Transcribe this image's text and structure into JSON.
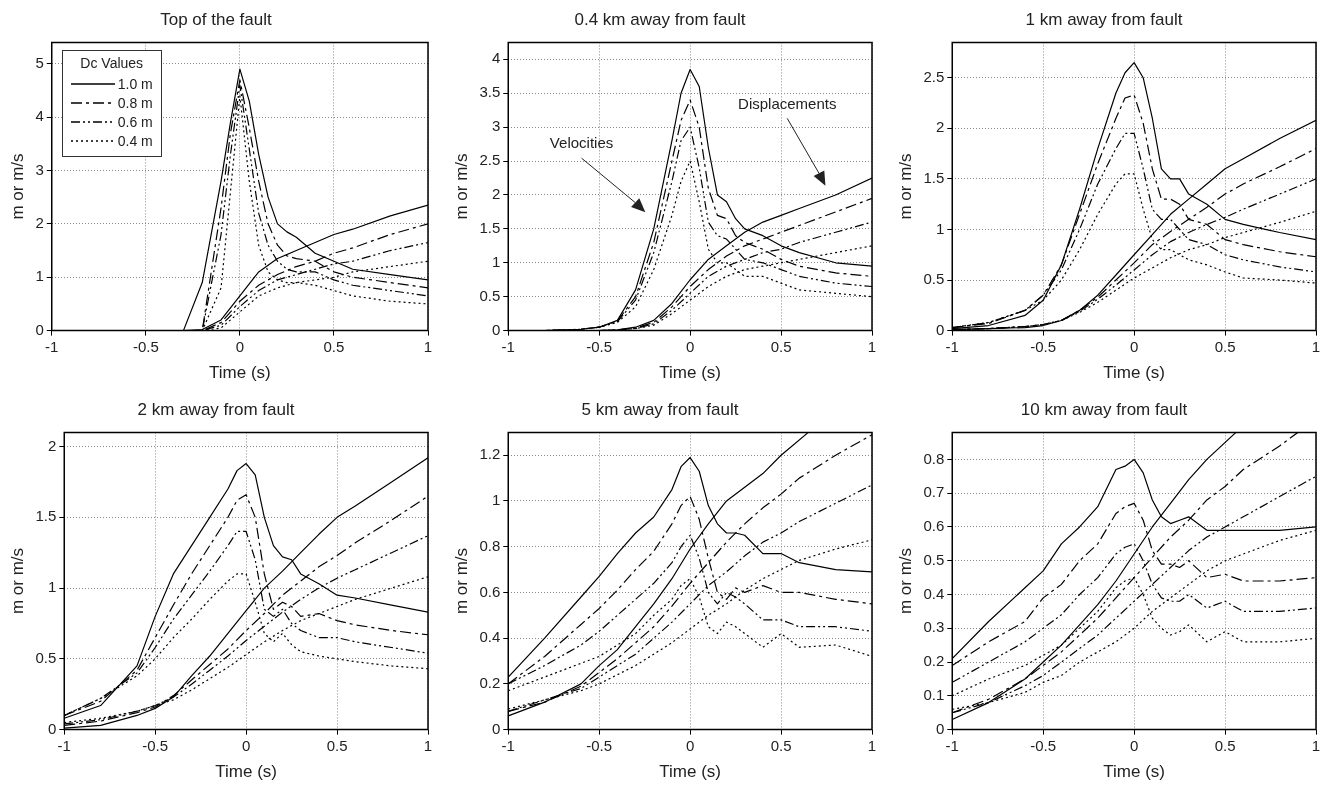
{
  "chart_data": [
    {
      "type": "line",
      "title": "Top of the fault",
      "xlabel": "Time (s)",
      "ylabel": "m or m/s",
      "xlim": [
        -1,
        1
      ],
      "xticks": [
        -1,
        -0.5,
        0,
        0.5,
        1
      ],
      "ylim": [
        0,
        5.4
      ],
      "yticks": [
        0,
        1,
        2,
        3,
        4,
        5
      ],
      "grid": true,
      "legend": "top left",
      "legend_title": "Dc Values",
      "x": [
        -1,
        -0.8,
        -0.6,
        -0.5,
        -0.4,
        -0.3,
        -0.2,
        -0.1,
        -0.05,
        0,
        0.05,
        0.1,
        0.15,
        0.2,
        0.25,
        0.3,
        0.4,
        0.5,
        0.6,
        0.8,
        1
      ],
      "series": [
        {
          "name": "1.0 m",
          "color": "#000000",
          "line_style": "solid",
          "values": [
            0,
            0,
            0,
            0,
            0,
            0,
            0.9,
            2.8,
            3.9,
            4.9,
            4.3,
            3.3,
            2.5,
            2.0,
            1.85,
            1.75,
            1.45,
            1.3,
            1.15,
            1.05,
            0.95
          ]
        },
        {
          "name": "0.8 m",
          "color": "#000000",
          "line_style": "dashed",
          "values": [
            0,
            0,
            0,
            0,
            0,
            0,
            0,
            2.3,
            3.7,
            4.7,
            3.8,
            2.8,
            2.0,
            1.6,
            1.4,
            1.35,
            1.3,
            1.1,
            1.0,
            0.9,
            0.8
          ]
        },
        {
          "name": "0.6 m",
          "color": "#000000",
          "line_style": "dashdot",
          "values": [
            0,
            0,
            0,
            0,
            0,
            0,
            0,
            1.8,
            3.3,
            4.6,
            3.4,
            2.2,
            1.6,
            1.3,
            1.15,
            1.1,
            1.1,
            0.95,
            0.85,
            0.75,
            0.65
          ]
        },
        {
          "name": "0.4 m",
          "color": "#000000",
          "line_style": "dotted",
          "values": [
            0,
            0,
            0,
            0,
            0,
            0,
            0,
            0.8,
            2.6,
            4.4,
            2.8,
            1.6,
            1.1,
            0.95,
            0.9,
            0.9,
            0.85,
            0.75,
            0.65,
            0.55,
            0.5
          ]
        },
        {
          "color": "#000000",
          "line_style": "solid",
          "x": [
            -1,
            -0.8,
            -0.6,
            -0.5,
            -0.4,
            -0.3,
            -0.2,
            -0.1,
            0,
            0.1,
            0.2,
            0.3,
            0.4,
            0.5,
            0.6,
            0.8,
            1
          ],
          "values": [
            0,
            0,
            0,
            0,
            0,
            0,
            0.02,
            0.2,
            0.65,
            1.1,
            1.35,
            1.5,
            1.65,
            1.8,
            1.9,
            2.15,
            2.35
          ]
        },
        {
          "color": "#000000",
          "line_style": "dashed",
          "x": [
            -1,
            -0.8,
            -0.6,
            -0.5,
            -0.4,
            -0.3,
            -0.2,
            -0.1,
            0,
            0.1,
            0.2,
            0.3,
            0.4,
            0.5,
            0.6,
            0.8,
            1
          ],
          "values": [
            0,
            0,
            0,
            0,
            0,
            0,
            0,
            0.15,
            0.55,
            0.85,
            1.05,
            1.2,
            1.3,
            1.45,
            1.55,
            1.8,
            2.0
          ]
        },
        {
          "color": "#000000",
          "line_style": "dashdot",
          "x": [
            -1,
            -0.8,
            -0.6,
            -0.5,
            -0.4,
            -0.3,
            -0.2,
            -0.1,
            0,
            0.1,
            0.2,
            0.3,
            0.4,
            0.5,
            0.6,
            0.8,
            1
          ],
          "values": [
            0,
            0,
            0,
            0,
            0,
            0,
            0,
            0.1,
            0.45,
            0.75,
            0.95,
            1.05,
            1.15,
            1.25,
            1.3,
            1.5,
            1.65
          ]
        },
        {
          "color": "#000000",
          "line_style": "dotted",
          "x": [
            -1,
            -0.8,
            -0.6,
            -0.5,
            -0.4,
            -0.3,
            -0.2,
            -0.1,
            0,
            0.1,
            0.2,
            0.3,
            0.4,
            0.5,
            0.6,
            0.8,
            1
          ],
          "values": [
            0,
            0,
            0,
            0,
            0,
            0,
            0,
            0.05,
            0.35,
            0.65,
            0.8,
            0.9,
            0.95,
            1.0,
            1.1,
            1.2,
            1.3
          ]
        }
      ]
    },
    {
      "type": "line",
      "title": "0.4 km away from fault",
      "xlabel": "Time (s)",
      "ylabel": "m or m/s",
      "xlim": [
        -1,
        1
      ],
      "xticks": [
        -1,
        -0.5,
        0,
        0.5,
        1
      ],
      "ylim": [
        0,
        4.25
      ],
      "yticks": [
        0,
        0.5,
        1,
        1.5,
        2,
        2.5,
        3,
        3.5,
        4
      ],
      "grid": true,
      "annotations": [
        "Velocities",
        "Displacements"
      ],
      "x": [
        -1,
        -0.8,
        -0.6,
        -0.5,
        -0.4,
        -0.3,
        -0.2,
        -0.1,
        -0.05,
        0,
        0.05,
        0.1,
        0.15,
        0.2,
        0.25,
        0.3,
        0.4,
        0.5,
        0.6,
        0.8,
        1
      ],
      "series": [
        {
          "color": "#000000",
          "line_style": "solid",
          "values": [
            0,
            0,
            0.02,
            0.05,
            0.15,
            0.6,
            1.5,
            2.8,
            3.5,
            3.85,
            3.6,
            2.7,
            2.0,
            1.9,
            1.65,
            1.5,
            1.4,
            1.25,
            1.15,
            1.0,
            0.95
          ]
        },
        {
          "color": "#000000",
          "line_style": "dashed",
          "values": [
            0,
            0,
            0.02,
            0.05,
            0.14,
            0.5,
            1.3,
            2.5,
            3.1,
            3.4,
            3.0,
            2.1,
            1.7,
            1.65,
            1.4,
            1.3,
            1.2,
            1.05,
            0.95,
            0.85,
            0.8
          ]
        },
        {
          "color": "#000000",
          "line_style": "dashdot",
          "values": [
            0,
            0,
            0.02,
            0.05,
            0.13,
            0.45,
            1.15,
            2.2,
            2.8,
            3.0,
            2.4,
            1.6,
            1.4,
            1.35,
            1.2,
            1.05,
            1.0,
            0.9,
            0.8,
            0.7,
            0.65
          ]
        },
        {
          "color": "#000000",
          "line_style": "dotted",
          "values": [
            0,
            0,
            0.02,
            0.05,
            0.12,
            0.35,
            0.9,
            1.7,
            2.2,
            2.5,
            1.9,
            1.2,
            1.0,
            1.0,
            0.9,
            0.8,
            0.8,
            0.7,
            0.6,
            0.55,
            0.5
          ]
        },
        {
          "color": "#000000",
          "line_style": "solid",
          "x": [
            -1,
            -0.8,
            -0.6,
            -0.5,
            -0.4,
            -0.3,
            -0.2,
            -0.1,
            0,
            0.1,
            0.2,
            0.3,
            0.4,
            0.5,
            0.6,
            0.8,
            1
          ],
          "values": [
            0,
            0,
            0,
            0,
            0.01,
            0.05,
            0.15,
            0.4,
            0.75,
            1.05,
            1.25,
            1.45,
            1.6,
            1.7,
            1.8,
            2.0,
            2.25
          ]
        },
        {
          "color": "#000000",
          "line_style": "dashed",
          "x": [
            -1,
            -0.8,
            -0.6,
            -0.5,
            -0.4,
            -0.3,
            -0.2,
            -0.1,
            0,
            0.1,
            0.2,
            0.3,
            0.4,
            0.5,
            0.6,
            0.8,
            1
          ],
          "values": [
            0,
            0,
            0,
            0,
            0.01,
            0.04,
            0.12,
            0.35,
            0.65,
            0.9,
            1.1,
            1.25,
            1.35,
            1.45,
            1.55,
            1.75,
            1.95
          ]
        },
        {
          "color": "#000000",
          "line_style": "dashdot",
          "x": [
            -1,
            -0.8,
            -0.6,
            -0.5,
            -0.4,
            -0.3,
            -0.2,
            -0.1,
            0,
            0.1,
            0.2,
            0.3,
            0.4,
            0.5,
            0.6,
            0.8,
            1
          ],
          "values": [
            0,
            0,
            0,
            0,
            0.01,
            0.03,
            0.1,
            0.3,
            0.55,
            0.8,
            0.95,
            1.05,
            1.15,
            1.2,
            1.3,
            1.45,
            1.6
          ]
        },
        {
          "color": "#000000",
          "line_style": "dotted",
          "x": [
            -1,
            -0.8,
            -0.6,
            -0.5,
            -0.4,
            -0.3,
            -0.2,
            -0.1,
            0,
            0.1,
            0.2,
            0.3,
            0.4,
            0.5,
            0.6,
            0.8,
            1
          ],
          "values": [
            0,
            0,
            0,
            0,
            0.01,
            0.03,
            0.08,
            0.25,
            0.45,
            0.65,
            0.8,
            0.9,
            0.95,
            1.0,
            1.05,
            1.15,
            1.25
          ]
        }
      ]
    },
    {
      "type": "line",
      "title": "1 km away from fault",
      "xlabel": "Time (s)",
      "ylabel": "m or m/s",
      "xlim": [
        -1,
        1
      ],
      "xticks": [
        -1,
        -0.5,
        0,
        0.5,
        1
      ],
      "ylim": [
        0,
        2.85
      ],
      "yticks": [
        0,
        0.5,
        1,
        1.5,
        2,
        2.5
      ],
      "grid": true,
      "x": [
        -1,
        -0.8,
        -0.6,
        -0.5,
        -0.4,
        -0.3,
        -0.2,
        -0.1,
        -0.05,
        0,
        0.05,
        0.1,
        0.15,
        0.2,
        0.25,
        0.3,
        0.4,
        0.5,
        0.6,
        0.8,
        1
      ],
      "series": [
        {
          "color": "#000000",
          "line_style": "solid",
          "values": [
            0.02,
            0.05,
            0.15,
            0.3,
            0.65,
            1.2,
            1.8,
            2.35,
            2.55,
            2.65,
            2.5,
            2.1,
            1.6,
            1.5,
            1.5,
            1.35,
            1.25,
            1.1,
            1.05,
            0.97,
            0.9
          ]
        },
        {
          "color": "#000000",
          "line_style": "dashed",
          "values": [
            0.03,
            0.07,
            0.2,
            0.35,
            0.65,
            1.15,
            1.65,
            2.1,
            2.3,
            2.33,
            2.05,
            1.6,
            1.3,
            1.3,
            1.25,
            1.1,
            1.05,
            0.9,
            0.85,
            0.78,
            0.73
          ]
        },
        {
          "color": "#000000",
          "line_style": "dashdot",
          "values": [
            0.03,
            0.08,
            0.2,
            0.35,
            0.6,
            1.0,
            1.45,
            1.8,
            1.95,
            1.95,
            1.6,
            1.2,
            1.1,
            1.1,
            1.0,
            0.9,
            0.85,
            0.75,
            0.7,
            0.63,
            0.58
          ]
        },
        {
          "color": "#000000",
          "line_style": "dotted",
          "values": [
            0.03,
            0.08,
            0.2,
            0.3,
            0.5,
            0.8,
            1.15,
            1.45,
            1.55,
            1.55,
            1.2,
            0.9,
            0.8,
            0.8,
            0.75,
            0.7,
            0.65,
            0.58,
            0.52,
            0.5,
            0.47
          ]
        },
        {
          "color": "#000000",
          "line_style": "solid",
          "x": [
            -1,
            -0.8,
            -0.6,
            -0.5,
            -0.4,
            -0.3,
            -0.2,
            -0.1,
            0,
            0.1,
            0.2,
            0.3,
            0.4,
            0.5,
            0.6,
            0.8,
            1
          ],
          "values": [
            0.01,
            0.02,
            0.03,
            0.05,
            0.1,
            0.2,
            0.35,
            0.55,
            0.75,
            0.95,
            1.15,
            1.3,
            1.45,
            1.6,
            1.7,
            1.9,
            2.08
          ]
        },
        {
          "color": "#000000",
          "line_style": "dashed",
          "x": [
            -1,
            -0.8,
            -0.6,
            -0.5,
            -0.4,
            -0.3,
            -0.2,
            -0.1,
            0,
            0.1,
            0.2,
            0.3,
            0.4,
            0.5,
            0.6,
            0.8,
            1
          ],
          "values": [
            0.01,
            0.02,
            0.04,
            0.06,
            0.1,
            0.2,
            0.33,
            0.5,
            0.67,
            0.85,
            0.98,
            1.1,
            1.22,
            1.35,
            1.45,
            1.62,
            1.8
          ]
        },
        {
          "color": "#000000",
          "line_style": "dashdot",
          "x": [
            -1,
            -0.8,
            -0.6,
            -0.5,
            -0.4,
            -0.3,
            -0.2,
            -0.1,
            0,
            0.1,
            0.2,
            0.3,
            0.4,
            0.5,
            0.6,
            0.8,
            1
          ],
          "values": [
            0.01,
            0.02,
            0.04,
            0.06,
            0.1,
            0.19,
            0.31,
            0.45,
            0.6,
            0.75,
            0.88,
            0.97,
            1.05,
            1.12,
            1.2,
            1.35,
            1.5
          ]
        },
        {
          "color": "#000000",
          "line_style": "dotted",
          "x": [
            -1,
            -0.8,
            -0.6,
            -0.5,
            -0.4,
            -0.3,
            -0.2,
            -0.1,
            0,
            0.1,
            0.2,
            0.3,
            0.4,
            0.5,
            0.6,
            0.8,
            1
          ],
          "values": [
            0.01,
            0.02,
            0.04,
            0.06,
            0.1,
            0.18,
            0.28,
            0.4,
            0.52,
            0.62,
            0.72,
            0.8,
            0.85,
            0.92,
            0.97,
            1.07,
            1.18
          ]
        }
      ]
    },
    {
      "type": "line",
      "title": "2 km away from fault",
      "xlabel": "Time (s)",
      "ylabel": "m or m/s",
      "xlim": [
        -1,
        1
      ],
      "xticks": [
        -1,
        -0.5,
        0,
        0.5,
        1
      ],
      "ylim": [
        0,
        2.1
      ],
      "yticks": [
        0,
        0.5,
        1,
        1.5,
        2
      ],
      "grid": true,
      "x": [
        -1,
        -0.8,
        -0.6,
        -0.5,
        -0.4,
        -0.3,
        -0.2,
        -0.1,
        -0.05,
        0,
        0.05,
        0.1,
        0.15,
        0.2,
        0.25,
        0.3,
        0.4,
        0.5,
        0.6,
        0.8,
        1
      ],
      "series": [
        {
          "color": "#000000",
          "line_style": "solid",
          "values": [
            0.08,
            0.17,
            0.45,
            0.8,
            1.1,
            1.3,
            1.5,
            1.7,
            1.83,
            1.88,
            1.8,
            1.5,
            1.3,
            1.22,
            1.2,
            1.1,
            1.03,
            0.95,
            0.93,
            0.88,
            0.83
          ]
        },
        {
          "color": "#000000",
          "line_style": "dashed",
          "values": [
            0.1,
            0.2,
            0.42,
            0.65,
            0.88,
            1.1,
            1.3,
            1.5,
            1.62,
            1.66,
            1.5,
            1.1,
            0.85,
            0.9,
            0.87,
            0.8,
            0.82,
            0.77,
            0.74,
            0.7,
            0.67
          ]
        },
        {
          "color": "#000000",
          "line_style": "dashdot",
          "values": [
            0.1,
            0.22,
            0.4,
            0.58,
            0.78,
            0.95,
            1.12,
            1.3,
            1.4,
            1.4,
            1.2,
            0.85,
            0.8,
            0.85,
            0.75,
            0.7,
            0.65,
            0.65,
            0.62,
            0.58,
            0.54
          ]
        },
        {
          "color": "#000000",
          "line_style": "dotted",
          "values": [
            0.1,
            0.22,
            0.38,
            0.5,
            0.65,
            0.78,
            0.92,
            1.05,
            1.1,
            1.1,
            0.9,
            0.68,
            0.62,
            0.68,
            0.6,
            0.55,
            0.52,
            0.5,
            0.48,
            0.45,
            0.43
          ]
        },
        {
          "color": "#000000",
          "line_style": "solid",
          "x": [
            -1,
            -0.8,
            -0.6,
            -0.5,
            -0.4,
            -0.3,
            -0.2,
            -0.1,
            0,
            0.1,
            0.2,
            0.3,
            0.4,
            0.5,
            0.6,
            0.8,
            1
          ],
          "values": [
            0.01,
            0.03,
            0.1,
            0.15,
            0.23,
            0.38,
            0.52,
            0.68,
            0.84,
            1.0,
            1.12,
            1.25,
            1.38,
            1.5,
            1.58,
            1.75,
            1.92
          ]
        },
        {
          "color": "#000000",
          "line_style": "dashed",
          "x": [
            -1,
            -0.8,
            -0.6,
            -0.5,
            -0.4,
            -0.3,
            -0.2,
            -0.1,
            0,
            0.1,
            0.2,
            0.3,
            0.4,
            0.5,
            0.6,
            0.8,
            1
          ],
          "values": [
            0.03,
            0.06,
            0.12,
            0.16,
            0.24,
            0.35,
            0.46,
            0.57,
            0.7,
            0.82,
            0.95,
            1.05,
            1.15,
            1.23,
            1.32,
            1.48,
            1.65
          ]
        },
        {
          "color": "#000000",
          "line_style": "dashdot",
          "x": [
            -1,
            -0.8,
            -0.6,
            -0.5,
            -0.4,
            -0.3,
            -0.2,
            -0.1,
            0,
            0.1,
            0.2,
            0.3,
            0.4,
            0.5,
            0.6,
            0.8,
            1
          ],
          "values": [
            0.04,
            0.07,
            0.13,
            0.17,
            0.23,
            0.32,
            0.42,
            0.52,
            0.63,
            0.73,
            0.83,
            0.92,
            1.0,
            1.07,
            1.13,
            1.25,
            1.37
          ]
        },
        {
          "color": "#000000",
          "line_style": "dotted",
          "x": [
            -1,
            -0.8,
            -0.6,
            -0.5,
            -0.4,
            -0.3,
            -0.2,
            -0.1,
            0,
            0.1,
            0.2,
            0.3,
            0.4,
            0.5,
            0.6,
            0.8,
            1
          ],
          "values": [
            0.05,
            0.08,
            0.13,
            0.17,
            0.21,
            0.28,
            0.36,
            0.44,
            0.53,
            0.62,
            0.7,
            0.77,
            0.82,
            0.87,
            0.92,
            1.0,
            1.08
          ]
        }
      ]
    },
    {
      "type": "line",
      "title": "5 km away from fault",
      "xlabel": "Time (s)",
      "ylabel": "m or m/s",
      "xlim": [
        -1,
        1
      ],
      "xticks": [
        -1,
        -0.5,
        0,
        0.5,
        1
      ],
      "ylim": [
        0,
        1.3
      ],
      "yticks": [
        0,
        0.2,
        0.4,
        0.6,
        0.8,
        1,
        1.2
      ],
      "grid": true,
      "x": [
        -1,
        -0.8,
        -0.6,
        -0.5,
        -0.4,
        -0.3,
        -0.2,
        -0.1,
        -0.05,
        0,
        0.05,
        0.1,
        0.15,
        0.2,
        0.25,
        0.3,
        0.4,
        0.5,
        0.6,
        0.8,
        1
      ],
      "series": [
        {
          "color": "#000000",
          "line_style": "solid",
          "values": [
            0.23,
            0.4,
            0.58,
            0.67,
            0.77,
            0.86,
            0.93,
            1.05,
            1.15,
            1.19,
            1.13,
            0.98,
            0.9,
            0.86,
            0.86,
            0.85,
            0.77,
            0.77,
            0.73,
            0.7,
            0.69
          ]
        },
        {
          "color": "#000000",
          "line_style": "dashed",
          "values": [
            0.2,
            0.32,
            0.46,
            0.53,
            0.61,
            0.7,
            0.78,
            0.9,
            0.98,
            1.02,
            0.92,
            0.75,
            0.6,
            0.57,
            0.62,
            0.6,
            0.63,
            0.6,
            0.6,
            0.57,
            0.55
          ]
        },
        {
          "color": "#000000",
          "line_style": "dashdot",
          "values": [
            0.2,
            0.28,
            0.37,
            0.43,
            0.5,
            0.57,
            0.64,
            0.73,
            0.8,
            0.85,
            0.75,
            0.6,
            0.55,
            0.6,
            0.58,
            0.55,
            0.48,
            0.48,
            0.45,
            0.45,
            0.43
          ]
        },
        {
          "color": "#000000",
          "line_style": "dotted",
          "values": [
            0.17,
            0.23,
            0.29,
            0.32,
            0.37,
            0.42,
            0.5,
            0.57,
            0.63,
            0.66,
            0.58,
            0.45,
            0.42,
            0.47,
            0.45,
            0.42,
            0.36,
            0.42,
            0.36,
            0.37,
            0.32
          ]
        },
        {
          "color": "#000000",
          "line_style": "solid",
          "x": [
            -1,
            -0.8,
            -0.6,
            -0.5,
            -0.4,
            -0.3,
            -0.2,
            -0.1,
            0,
            0.1,
            0.2,
            0.3,
            0.4,
            0.5,
            0.65
          ],
          "values": [
            0.06,
            0.12,
            0.2,
            0.28,
            0.35,
            0.45,
            0.55,
            0.66,
            0.79,
            0.9,
            1.0,
            1.06,
            1.12,
            1.2,
            1.3
          ]
        },
        {
          "color": "#000000",
          "line_style": "dashed",
          "x": [
            -1,
            -0.8,
            -0.6,
            -0.5,
            -0.4,
            -0.3,
            -0.2,
            -0.1,
            0,
            0.1,
            0.2,
            0.3,
            0.4,
            0.5,
            0.6,
            0.8,
            1
          ],
          "values": [
            0.08,
            0.12,
            0.19,
            0.25,
            0.31,
            0.38,
            0.45,
            0.54,
            0.64,
            0.73,
            0.82,
            0.9,
            0.97,
            1.03,
            1.1,
            1.2,
            1.29
          ]
        },
        {
          "color": "#000000",
          "line_style": "dashdot",
          "x": [
            -1,
            -0.8,
            -0.6,
            -0.5,
            -0.4,
            -0.3,
            -0.2,
            -0.1,
            0,
            0.1,
            0.2,
            0.3,
            0.4,
            0.5,
            0.6,
            0.8,
            1
          ],
          "values": [
            0.08,
            0.13,
            0.18,
            0.23,
            0.28,
            0.33,
            0.4,
            0.47,
            0.55,
            0.63,
            0.69,
            0.76,
            0.82,
            0.86,
            0.91,
            0.99,
            1.07
          ]
        },
        {
          "color": "#000000",
          "line_style": "dotted",
          "x": [
            -1,
            -0.8,
            -0.6,
            -0.5,
            -0.4,
            -0.3,
            -0.2,
            -0.1,
            0,
            0.1,
            0.2,
            0.3,
            0.4,
            0.5,
            0.6,
            0.8,
            1
          ],
          "values": [
            0.09,
            0.13,
            0.17,
            0.2,
            0.24,
            0.28,
            0.33,
            0.38,
            0.44,
            0.5,
            0.55,
            0.61,
            0.66,
            0.7,
            0.74,
            0.79,
            0.83
          ]
        }
      ]
    },
    {
      "type": "line",
      "title": "10 km away from fault",
      "xlabel": "Time (s)",
      "ylabel": "m or m/s",
      "xlim": [
        -1,
        1
      ],
      "xticks": [
        -1,
        -0.5,
        0,
        0.5,
        1
      ],
      "ylim": [
        0,
        0.88
      ],
      "yticks": [
        0,
        0.1,
        0.2,
        0.3,
        0.4,
        0.5,
        0.6,
        0.7,
        0.8
      ],
      "grid": true,
      "x": [
        -1,
        -0.8,
        -0.6,
        -0.5,
        -0.4,
        -0.3,
        -0.2,
        -0.1,
        -0.05,
        0,
        0.05,
        0.1,
        0.15,
        0.2,
        0.25,
        0.3,
        0.4,
        0.5,
        0.6,
        0.8,
        1
      ],
      "series": [
        {
          "color": "#000000",
          "line_style": "solid",
          "values": [
            0.21,
            0.32,
            0.42,
            0.47,
            0.55,
            0.6,
            0.66,
            0.77,
            0.78,
            0.8,
            0.76,
            0.68,
            0.63,
            0.61,
            0.62,
            0.63,
            0.59,
            0.59,
            0.59,
            0.59,
            0.6
          ]
        },
        {
          "color": "#000000",
          "line_style": "dashed",
          "values": [
            0.19,
            0.26,
            0.32,
            0.39,
            0.43,
            0.5,
            0.55,
            0.64,
            0.66,
            0.67,
            0.62,
            0.53,
            0.49,
            0.49,
            0.48,
            0.5,
            0.45,
            0.46,
            0.44,
            0.44,
            0.45
          ]
        },
        {
          "color": "#000000",
          "line_style": "dashdot",
          "values": [
            0.14,
            0.2,
            0.26,
            0.3,
            0.34,
            0.4,
            0.45,
            0.52,
            0.54,
            0.55,
            0.5,
            0.43,
            0.39,
            0.38,
            0.38,
            0.4,
            0.36,
            0.38,
            0.35,
            0.35,
            0.36
          ]
        },
        {
          "color": "#000000",
          "line_style": "dotted",
          "values": [
            0.1,
            0.15,
            0.19,
            0.22,
            0.25,
            0.3,
            0.35,
            0.42,
            0.44,
            0.45,
            0.4,
            0.33,
            0.3,
            0.28,
            0.29,
            0.31,
            0.26,
            0.29,
            0.26,
            0.26,
            0.27
          ]
        },
        {
          "color": "#000000",
          "line_style": "solid",
          "x": [
            -1,
            -0.8,
            -0.6,
            -0.5,
            -0.4,
            -0.3,
            -0.2,
            -0.1,
            0,
            0.1,
            0.2,
            0.3,
            0.4,
            0.56
          ],
          "values": [
            0.03,
            0.08,
            0.15,
            0.2,
            0.25,
            0.31,
            0.37,
            0.44,
            0.52,
            0.6,
            0.67,
            0.74,
            0.8,
            0.88
          ]
        },
        {
          "color": "#000000",
          "line_style": "dashed",
          "x": [
            -1,
            -0.8,
            -0.6,
            -0.5,
            -0.4,
            -0.3,
            -0.2,
            -0.1,
            0,
            0.1,
            0.2,
            0.3,
            0.4,
            0.5,
            0.6,
            0.8,
            0.9
          ],
          "values": [
            0.05,
            0.09,
            0.15,
            0.19,
            0.23,
            0.28,
            0.33,
            0.39,
            0.45,
            0.51,
            0.57,
            0.62,
            0.68,
            0.72,
            0.77,
            0.84,
            0.88
          ]
        },
        {
          "color": "#000000",
          "line_style": "dashdot",
          "x": [
            -1,
            -0.8,
            -0.6,
            -0.5,
            -0.4,
            -0.3,
            -0.2,
            -0.1,
            0,
            0.1,
            0.2,
            0.3,
            0.4,
            0.5,
            0.6,
            0.8,
            1
          ],
          "values": [
            0.05,
            0.08,
            0.13,
            0.16,
            0.2,
            0.24,
            0.28,
            0.33,
            0.38,
            0.43,
            0.48,
            0.53,
            0.57,
            0.6,
            0.63,
            0.69,
            0.75
          ]
        },
        {
          "color": "#000000",
          "line_style": "dotted",
          "x": [
            -1,
            -0.8,
            -0.6,
            -0.5,
            -0.4,
            -0.3,
            -0.2,
            -0.1,
            0,
            0.1,
            0.2,
            0.3,
            0.4,
            0.5,
            0.6,
            0.8,
            1
          ],
          "values": [
            0.06,
            0.08,
            0.11,
            0.14,
            0.16,
            0.2,
            0.23,
            0.26,
            0.3,
            0.35,
            0.39,
            0.43,
            0.47,
            0.5,
            0.52,
            0.56,
            0.59
          ]
        }
      ]
    }
  ]
}
